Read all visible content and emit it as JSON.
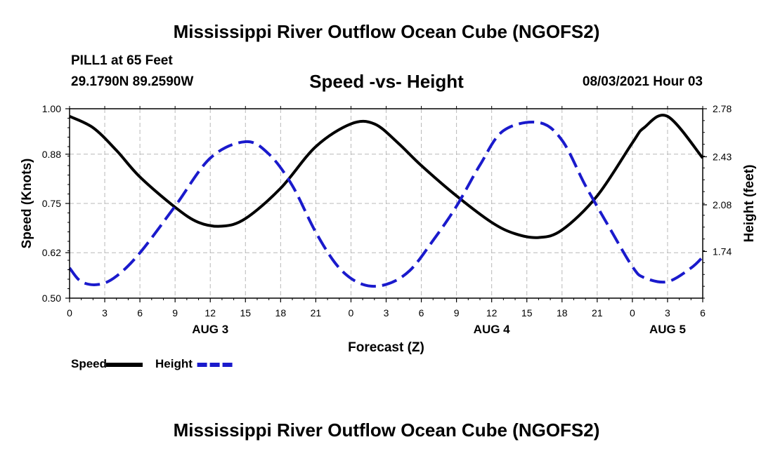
{
  "title": "Mississippi River Outflow Ocean Cube (NGOFS2)",
  "footer_title": "Mississippi River Outflow Ocean Cube (NGOFS2)",
  "station": "PILL1 at 65 Feet",
  "coords": "29.1790N  89.2590W",
  "datetime": "08/03/2021 Hour 03",
  "chart_data": {
    "type": "line",
    "title": "Speed -vs- Height",
    "xlabel": "Forecast (Z)",
    "ylabel": "Speed (Knots)",
    "y2label": "Height (feet)",
    "xlim": [
      0,
      54
    ],
    "ylim": [
      0.5,
      1.0
    ],
    "y2lim": [
      1.4,
      2.78
    ],
    "x_ticks": [
      0,
      3,
      6,
      9,
      12,
      15,
      18,
      21,
      24,
      27,
      30,
      33,
      36,
      39,
      42,
      45,
      48,
      51,
      54
    ],
    "x_tick_labels": [
      "0",
      "3",
      "6",
      "9",
      "12",
      "15",
      "18",
      "21",
      "0",
      "3",
      "6",
      "9",
      "12",
      "15",
      "18",
      "21",
      "0",
      "3",
      "6"
    ],
    "y_ticks": [
      0.5,
      0.62,
      0.75,
      0.88,
      1.0
    ],
    "y_tick_labels": [
      "0.50",
      "0.62",
      "0.75",
      "0.88",
      "1.00"
    ],
    "y2_ticks": [
      1.74,
      2.08,
      2.43,
      2.78
    ],
    "y2_tick_labels": [
      "1.74",
      "2.08",
      "2.43",
      "2.78"
    ],
    "date_labels": [
      {
        "x": 12,
        "label": "AUG 3"
      },
      {
        "x": 36,
        "label": "AUG 4"
      },
      {
        "x": 51,
        "label": "AUG 5"
      }
    ],
    "grid": true,
    "series": [
      {
        "name": "Speed",
        "axis": "left",
        "color": "#000000",
        "style": "solid",
        "x": [
          0,
          2,
          4,
          6,
          9,
          11,
          13,
          15,
          18,
          21,
          24,
          26,
          28,
          30,
          33,
          36,
          38,
          40,
          42,
          45,
          48,
          49,
          51,
          54
        ],
        "values": [
          0.98,
          0.95,
          0.89,
          0.82,
          0.74,
          0.7,
          0.69,
          0.71,
          0.79,
          0.9,
          0.96,
          0.96,
          0.91,
          0.85,
          0.77,
          0.7,
          0.67,
          0.66,
          0.68,
          0.77,
          0.91,
          0.95,
          0.98,
          0.87
        ]
      },
      {
        "name": "Height",
        "axis": "right",
        "color": "#1a1acc",
        "style": "dashed",
        "x": [
          0,
          1,
          2.5,
          4,
          6,
          9,
          12,
          15,
          17,
          19,
          21,
          23,
          25,
          27,
          29,
          31,
          33,
          35,
          37,
          40,
          42,
          44,
          46,
          48,
          49,
          51,
          53,
          54
        ],
        "values": [
          1.62,
          1.52,
          1.5,
          1.56,
          1.73,
          2.07,
          2.42,
          2.54,
          2.45,
          2.22,
          1.88,
          1.62,
          1.5,
          1.5,
          1.6,
          1.82,
          2.07,
          2.37,
          2.62,
          2.68,
          2.55,
          2.22,
          1.92,
          1.63,
          1.55,
          1.52,
          1.62,
          1.7
        ]
      }
    ],
    "legend": [
      {
        "label": "Speed",
        "color": "#000000",
        "style": "solid"
      },
      {
        "label": "Height",
        "color": "#1a1acc",
        "style": "dashed"
      }
    ]
  }
}
